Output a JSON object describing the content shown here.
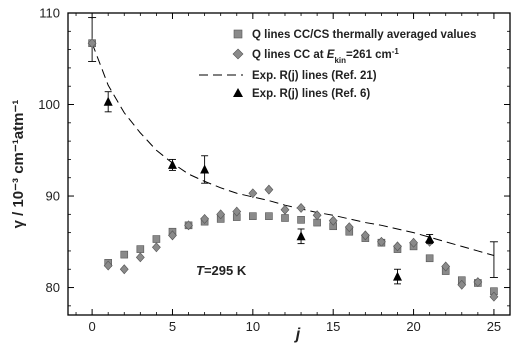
{
  "chart_data": {
    "type": "scatter",
    "xlabel": "j",
    "ylabel": "γ / 10⁻³ cm⁻¹atm⁻¹",
    "xlim": [
      -1.5,
      26
    ],
    "ylim": [
      77,
      110
    ],
    "xticks": [
      0,
      5,
      10,
      15,
      20,
      25
    ],
    "yticks": [
      80,
      90,
      100,
      110
    ],
    "annotation": {
      "prefix": "T",
      "suffix": "=295 K",
      "x": 8.0,
      "y": 78.6
    },
    "legend_position": "top-right",
    "colors": {
      "squares": "#8a8a8a",
      "diamonds": "#8a8a8a",
      "triangles": "#000000",
      "dashed": "#000000",
      "frame": "#000000"
    },
    "series": [
      {
        "name": "Q lines CC/CS thermally averaged values",
        "marker": "square",
        "x": [
          0,
          1,
          2,
          3,
          4,
          5,
          6,
          7,
          8,
          9,
          10,
          11,
          12,
          13,
          14,
          15,
          16,
          17,
          18,
          19,
          20,
          21,
          22,
          23,
          24,
          25
        ],
        "values": [
          106.7,
          82.7,
          83.6,
          84.2,
          85.3,
          86.1,
          86.8,
          87.2,
          87.5,
          87.7,
          87.8,
          87.8,
          87.6,
          87.4,
          87.1,
          86.7,
          86.1,
          85.4,
          84.9,
          84.2,
          84.5,
          83.2,
          81.8,
          80.8,
          80.5,
          79.6
        ],
        "values_unit": ""
      },
      {
        "name": "Q lines CC at Ekin=261 cm-1",
        "legend_parts": [
          "Q lines CC at ",
          "E",
          "kin",
          "=261 cm",
          "-1"
        ],
        "marker": "diamond",
        "x": [
          0,
          1,
          2,
          3,
          4,
          5,
          6,
          7,
          8,
          9,
          10,
          11,
          12,
          13,
          14,
          15,
          16,
          17,
          18,
          19,
          20,
          21,
          22,
          23,
          24,
          25
        ],
        "values": [
          106.7,
          82.4,
          82.0,
          83.3,
          84.4,
          85.7,
          86.8,
          87.5,
          88.0,
          88.3,
          90.3,
          90.7,
          88.5,
          88.7,
          87.9,
          87.3,
          86.6,
          85.7,
          85.0,
          84.5,
          84.9,
          85.0,
          82.3,
          80.3,
          80.6,
          79.0
        ]
      },
      {
        "name": "Exp. R(j) lines (Ref. 21)",
        "marker": "dashed-line",
        "x": [
          0,
          1,
          2,
          3,
          4,
          5,
          6,
          7,
          8,
          9,
          10,
          11,
          12,
          13,
          14,
          15,
          16,
          17,
          18,
          19,
          20,
          21,
          22,
          23,
          24,
          25
        ],
        "values": [
          106.7,
          102.1,
          99.1,
          96.9,
          95.0,
          93.6,
          92.4,
          91.6,
          90.9,
          90.3,
          89.9,
          89.5,
          89.0,
          88.6,
          88.2,
          87.9,
          87.5,
          87.1,
          86.8,
          86.4,
          86.0,
          85.5,
          85.0,
          84.5,
          84.0,
          83.5
        ],
        "error_bars": [
          {
            "x": 0,
            "y": 107.0,
            "lo": 104.7,
            "hi": 109.5
          },
          {
            "x": 25,
            "y": 83.0,
            "lo": 81.1,
            "hi": 85.0
          }
        ]
      },
      {
        "name": "Exp. R(j) lines (Ref. 6)",
        "marker": "triangle",
        "x": [
          1,
          5,
          7,
          13,
          19,
          21
        ],
        "values": [
          100.3,
          93.4,
          92.9,
          85.6,
          81.2,
          85.3
        ],
        "err": [
          1.1,
          0.6,
          1.5,
          0.8,
          0.8,
          0.5
        ]
      }
    ]
  }
}
